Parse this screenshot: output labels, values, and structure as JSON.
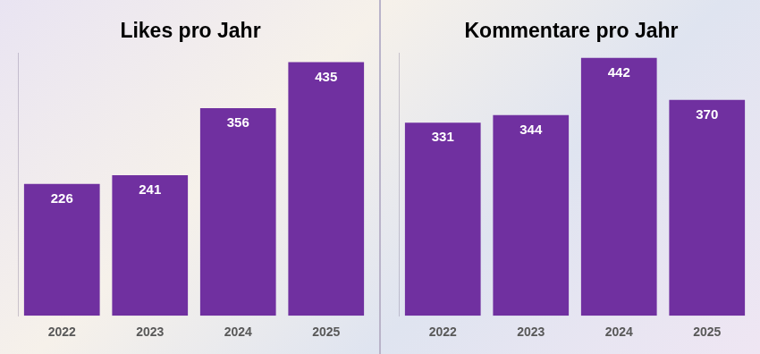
{
  "chart_data": [
    {
      "type": "bar",
      "title": "Likes pro Jahr",
      "categories": [
        "2022",
        "2023",
        "2024",
        "2025"
      ],
      "values": [
        226,
        241,
        356,
        435
      ],
      "color": "#7030a0",
      "ylim": [
        0,
        450
      ],
      "grid": false,
      "data_labels": true,
      "tick_labels": "x"
    },
    {
      "type": "bar",
      "title": "Kommentare pro Jahr",
      "categories": [
        "2022",
        "2023",
        "2024",
        "2025"
      ],
      "values": [
        331,
        344,
        442,
        370
      ],
      "color": "#7030a0",
      "ylim": [
        0,
        450
      ],
      "grid": false,
      "data_labels": true,
      "tick_labels": "x"
    }
  ]
}
